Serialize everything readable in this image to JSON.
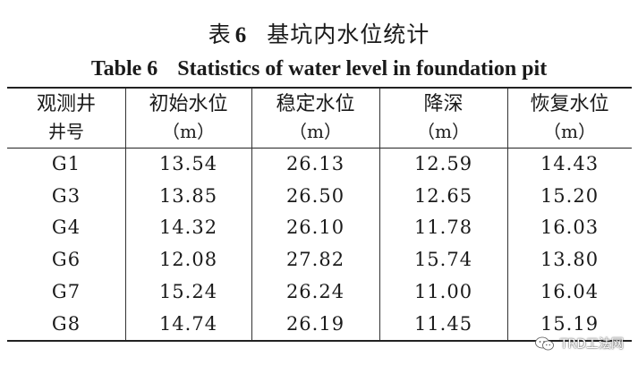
{
  "title": {
    "cn_prefix": "表",
    "cn_number": "6",
    "cn_text": "基坑内水位统计",
    "en_label": "Table 6",
    "en_text": "Statistics of water level in foundation pit"
  },
  "table": {
    "headers": [
      {
        "line1": "观测井",
        "line2": "井号"
      },
      {
        "line1": "初始水位",
        "line2": "（m）"
      },
      {
        "line1": "稳定水位",
        "line2": "（m）"
      },
      {
        "line1": "降深",
        "line2": "（m）"
      },
      {
        "line1": "恢复水位",
        "line2": "（m）"
      }
    ],
    "rows": [
      [
        "G1",
        "13.54",
        "26.13",
        "12.59",
        "14.43"
      ],
      [
        "G3",
        "13.85",
        "26.50",
        "12.65",
        "15.20"
      ],
      [
        "G4",
        "14.32",
        "26.10",
        "11.78",
        "16.03"
      ],
      [
        "G6",
        "12.08",
        "27.82",
        "15.74",
        "13.80"
      ],
      [
        "G7",
        "15.24",
        "26.24",
        "11.00",
        "16.04"
      ],
      [
        "G8",
        "14.74",
        "26.19",
        "11.45",
        "15.19"
      ]
    ]
  },
  "watermark": {
    "text": "TRD工法网",
    "icon": "wechat-icon"
  }
}
